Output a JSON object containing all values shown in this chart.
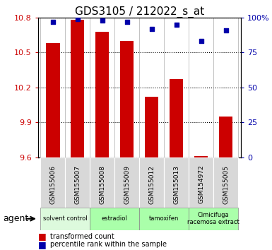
{
  "title": "GDS3105 / 212022_s_at",
  "samples": [
    "GSM155006",
    "GSM155007",
    "GSM155008",
    "GSM155009",
    "GSM155012",
    "GSM155013",
    "GSM154972",
    "GSM155005"
  ],
  "bar_values": [
    10.58,
    10.78,
    10.68,
    10.6,
    10.12,
    10.27,
    9.61,
    9.95
  ],
  "scatter_values": [
    97,
    99,
    98,
    97,
    92,
    95,
    83,
    91
  ],
  "ylim_left": [
    9.6,
    10.8
  ],
  "ylim_right": [
    0,
    100
  ],
  "yticks_left": [
    9.6,
    9.9,
    10.2,
    10.5,
    10.8
  ],
  "yticks_right": [
    0,
    25,
    50,
    75,
    100
  ],
  "bar_color": "#cc0000",
  "scatter_color": "#0000aa",
  "background_color": "#ffffff",
  "agent_groups": [
    {
      "label": "solvent control",
      "start": 0,
      "end": 2,
      "color": "#ddfadd"
    },
    {
      "label": "estradiol",
      "start": 2,
      "end": 4,
      "color": "#aaffaa"
    },
    {
      "label": "tamoxifen",
      "start": 4,
      "end": 6,
      "color": "#aaffaa"
    },
    {
      "label": "Cimicifuga\nracemosa extract",
      "start": 6,
      "end": 8,
      "color": "#aaffaa"
    }
  ],
  "legend_items": [
    {
      "color": "#cc0000",
      "label": "transformed count"
    },
    {
      "color": "#0000aa",
      "label": "percentile rank within the sample"
    }
  ],
  "title_fontsize": 11,
  "bar_width": 0.55
}
